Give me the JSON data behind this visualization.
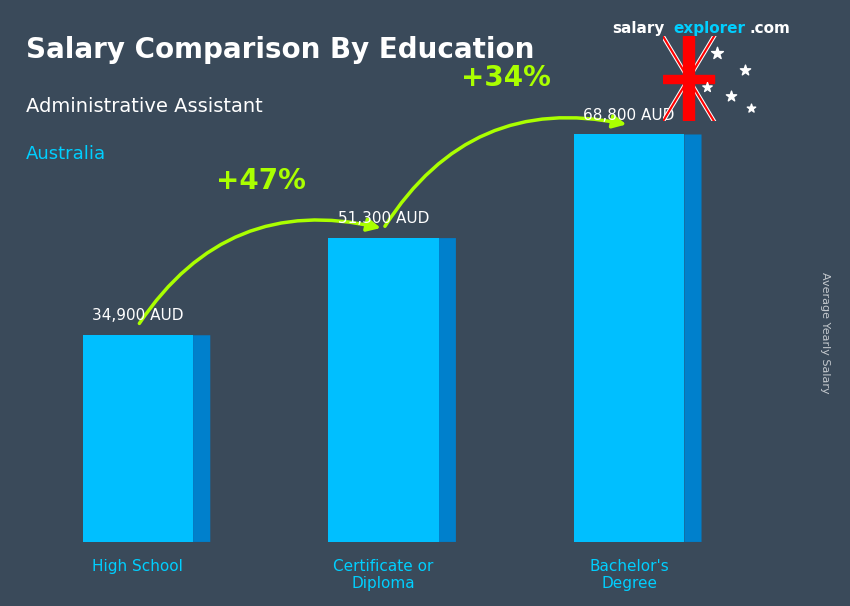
{
  "title": "Salary Comparison By Education",
  "subtitle": "Administrative Assistant",
  "country": "Australia",
  "categories": [
    "High School",
    "Certificate or\nDiploma",
    "Bachelor's\nDegree"
  ],
  "values": [
    34900,
    51300,
    68800
  ],
  "value_labels": [
    "34,900 AUD",
    "51,300 AUD",
    "68,800 AUD"
  ],
  "pct_labels": [
    "+47%",
    "+34%"
  ],
  "bar_face_color": "#00BFFF",
  "bar_top_color": "#87DFFF",
  "bar_side_color": "#0080CC",
  "bg_color": "#3a4a5a",
  "title_color": "#FFFFFF",
  "subtitle_color": "#FFFFFF",
  "country_color": "#00CFFF",
  "value_label_color": "#FFFFFF",
  "pct_color": "#AAFF00",
  "arrow_color": "#AAFF00",
  "axis_label_color": "#00CFFF",
  "watermark_color_salary": "#FFFFFF",
  "watermark_color_explorer": "#00CFFF",
  "watermark_color_com": "#FFFFFF",
  "ylabel_text": "Average Yearly Salary",
  "website_text": "salaryexplorer.com",
  "bar_width": 0.45,
  "ylim": [
    0,
    80000
  ]
}
